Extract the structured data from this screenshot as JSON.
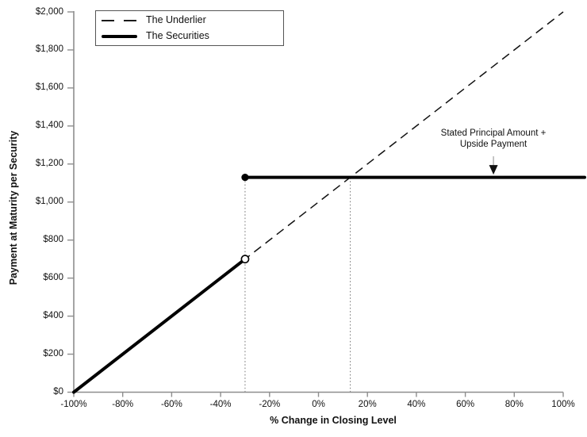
{
  "colors": {
    "axis": "#8e8e8e",
    "data_line": "#111111",
    "guide": "#777777",
    "arrow_stem": "#a6a6a6",
    "arrow_head": "#111111",
    "text": "#111111"
  },
  "legend": {
    "entries": [
      {
        "label": "The Underlier",
        "style": "dashed"
      },
      {
        "label": "The Securities",
        "style": "solid-thick"
      }
    ]
  },
  "annotation": {
    "line1": "Stated Principal Amount +",
    "line2": "Upside Payment"
  },
  "chart_data": {
    "type": "line",
    "title": "",
    "xlabel": "% Change in Closing Level",
    "ylabel": "Payment at Maturity per Security",
    "xlim": [
      -100,
      100
    ],
    "ylim": [
      0,
      2000
    ],
    "grid": false,
    "legend_position": "top-left",
    "x_ticks": [
      {
        "value": -100,
        "label": "-100%"
      },
      {
        "value": -80,
        "label": "-80%"
      },
      {
        "value": -60,
        "label": "-60%"
      },
      {
        "value": -40,
        "label": "-40%"
      },
      {
        "value": -20,
        "label": "-20%"
      },
      {
        "value": 0,
        "label": "0%"
      },
      {
        "value": 20,
        "label": "20%"
      },
      {
        "value": 40,
        "label": "40%"
      },
      {
        "value": 60,
        "label": "60%"
      },
      {
        "value": 80,
        "label": "80%"
      },
      {
        "value": 100,
        "label": "100%"
      }
    ],
    "y_ticks": [
      {
        "value": 0,
        "label": "$0"
      },
      {
        "value": 200,
        "label": "$200"
      },
      {
        "value": 400,
        "label": "$400"
      },
      {
        "value": 600,
        "label": "$600"
      },
      {
        "value": 800,
        "label": "$800"
      },
      {
        "value": 1000,
        "label": "$1,000"
      },
      {
        "value": 1200,
        "label": "$1,200"
      },
      {
        "value": 1400,
        "label": "$1,400"
      },
      {
        "value": 1600,
        "label": "$1,600"
      },
      {
        "value": 1800,
        "label": "$1,800"
      },
      {
        "value": 2000,
        "label": "$2,000"
      }
    ],
    "series": [
      {
        "name": "The Underlier",
        "style": "dashed",
        "points": [
          {
            "x": -100,
            "y": 0
          },
          {
            "x": 100,
            "y": 2000
          }
        ]
      },
      {
        "name": "The Securities",
        "style": "solid-thick",
        "segments": [
          {
            "from": {
              "x": -100,
              "y": 0
            },
            "to": {
              "x": -30,
              "y": 700
            },
            "end_marker": "open-circle"
          },
          {
            "from": {
              "x": -30,
              "y": 1130
            },
            "to": {
              "x": 100,
              "y": 1130
            },
            "start_marker": "filled-circle",
            "extends_past_axis": true
          }
        ]
      }
    ],
    "guides": [
      {
        "type": "dotted-vertical",
        "x": -30,
        "y_from": 0,
        "y_to": 1130
      },
      {
        "type": "dotted-vertical",
        "x": 13,
        "y_from": 0,
        "y_to": 1130
      }
    ],
    "annotation": {
      "text": [
        "Stated Principal Amount +",
        "Upside Payment"
      ],
      "arrow_x": 71.5,
      "arrow_to_y": 1130
    }
  }
}
